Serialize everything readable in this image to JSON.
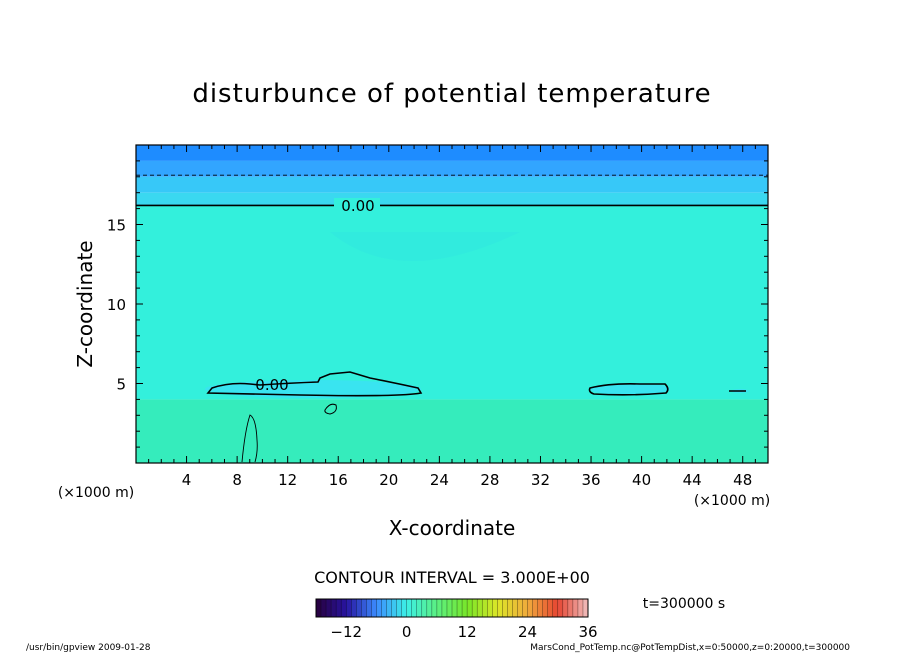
{
  "chart_data": {
    "type": "heatmap",
    "title": "disturbunce of potential temperature",
    "xlabel": "X-coordinate",
    "ylabel": "Z-coordinate",
    "x_unit": "(×1000 m)",
    "y_unit": "(×1000 m)",
    "xlim": [
      0,
      50
    ],
    "ylim": [
      0,
      20
    ],
    "x_ticks": [
      4,
      8,
      12,
      16,
      20,
      24,
      28,
      32,
      36,
      40,
      44,
      48
    ],
    "y_ticks": [
      5,
      10,
      15
    ],
    "contour_interval": "CONTOUR INTERVAL = 3.000E+00",
    "contour_labels": [
      "0.00",
      "0.00"
    ],
    "time_label": "t=300000 s",
    "colorbar": {
      "min": -18,
      "max": 36,
      "tick_labels": [
        "−12",
        "0",
        "12",
        "24",
        "36"
      ],
      "tick_values": [
        -12,
        0,
        12,
        24,
        36
      ]
    },
    "field_bands": [
      {
        "z0": 19,
        "z1": 20,
        "value": -9,
        "color": "#1e8cff"
      },
      {
        "z0": 18,
        "z1": 19,
        "value": -7,
        "color": "#32a5ff"
      },
      {
        "z0": 17,
        "z1": 18,
        "value": -5,
        "color": "#37c8f8"
      },
      {
        "z0": 16.2,
        "z1": 17,
        "value": -3,
        "color": "#3ad8f0"
      },
      {
        "z0": 4,
        "z1": 16.2,
        "value": 1,
        "color": "#33f0dc"
      },
      {
        "z0": 0,
        "z1": 4,
        "value": 3,
        "color": "#35ecbc"
      }
    ],
    "zero_contour_upper_z": 16.2,
    "dashed_contour_z": 18.1,
    "zero_contour_lower": [
      {
        "x_start": 5.5,
        "x_end": 22.5,
        "z": 4.5
      },
      {
        "x_start": 35.8,
        "x_end": 42,
        "z": 4.6
      },
      {
        "x_start": 47,
        "x_end": 48.5,
        "z": 4.5
      }
    ]
  },
  "footer": {
    "left": "/usr/bin/gpview   2009-01-28",
    "right": "MarsCond_PotTemp.nc@PotTempDist,x=0:50000,z=0:20000,t=300000"
  }
}
